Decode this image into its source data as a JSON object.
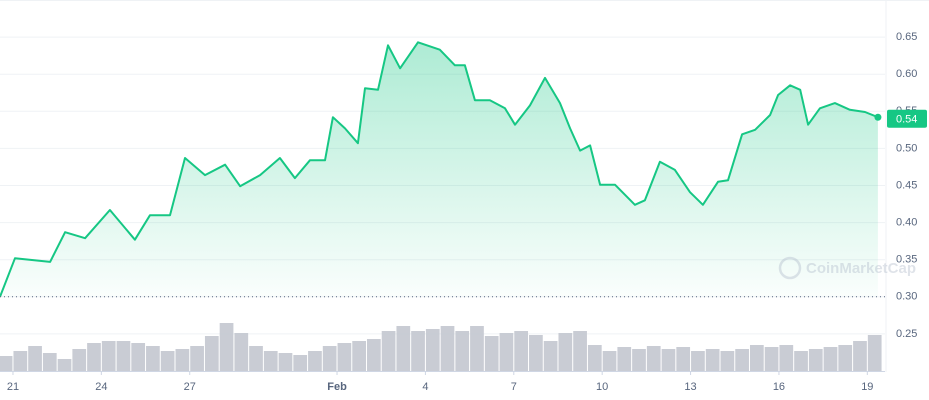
{
  "chart_data": {
    "type": "line",
    "x": [
      -0.44,
      0.07,
      1.26,
      1.77,
      2.45,
      3.29,
      4.14,
      4.65,
      5.33,
      5.84,
      6.52,
      7.2,
      7.71,
      8.39,
      9.06,
      9.57,
      10.08,
      10.59,
      10.86,
      11.27,
      11.71,
      11.95,
      12.39,
      12.73,
      13.14,
      13.75,
      14.49,
      15.0,
      15.34,
      15.68,
      16.19,
      16.7,
      17.04,
      17.55,
      18.06,
      18.57,
      18.91,
      19.25,
      19.59,
      19.93,
      20.44,
      21.11,
      21.45,
      21.96,
      22.47,
      22.98,
      23.42,
      23.93,
      24.27,
      24.75,
      25.19,
      25.7,
      25.97,
      26.38,
      26.72,
      26.99,
      27.39,
      27.9,
      28.41,
      28.92,
      29.36
    ],
    "series": [
      {
        "color": "#16c784",
        "values": [
          0.3,
          0.352,
          0.347,
          0.387,
          0.379,
          0.417,
          0.377,
          0.41,
          0.41,
          0.487,
          0.464,
          0.478,
          0.449,
          0.464,
          0.487,
          0.46,
          0.484,
          0.484,
          0.542,
          0.527,
          0.507,
          0.581,
          0.579,
          0.639,
          0.608,
          0.643,
          0.633,
          0.612,
          0.612,
          0.565,
          0.565,
          0.554,
          0.532,
          0.558,
          0.595,
          0.561,
          0.527,
          0.497,
          0.504,
          0.451,
          0.451,
          0.424,
          0.43,
          0.482,
          0.471,
          0.441,
          0.424,
          0.455,
          0.457,
          0.519,
          0.525,
          0.545,
          0.572,
          0.585,
          0.579,
          0.532,
          0.554,
          0.561,
          0.552,
          0.549,
          0.542
        ]
      }
    ],
    "volume": {
      "color": "#c3c7cf",
      "x": [
        -0.25,
        0.25,
        0.75,
        1.25,
        1.75,
        2.25,
        2.75,
        3.25,
        3.75,
        4.25,
        4.75,
        5.25,
        5.75,
        6.25,
        6.75,
        7.25,
        7.75,
        8.25,
        8.75,
        9.25,
        9.75,
        10.25,
        10.75,
        11.25,
        11.75,
        12.25,
        12.75,
        13.25,
        13.75,
        14.25,
        14.75,
        15.25,
        15.75,
        16.25,
        16.75,
        17.25,
        17.75,
        18.25,
        18.75,
        19.25,
        19.75,
        20.25,
        20.75,
        21.25,
        21.75,
        22.25,
        22.75,
        23.25,
        23.75,
        24.25,
        24.75,
        25.25,
        25.75,
        26.25,
        26.75,
        27.25,
        27.75,
        28.25,
        28.75,
        29.25
      ],
      "values": [
        15,
        20,
        25,
        18,
        12,
        22,
        28,
        30,
        30,
        28,
        25,
        20,
        22,
        25,
        35,
        48,
        38,
        25,
        20,
        18,
        16,
        20,
        25,
        28,
        30,
        32,
        40,
        45,
        40,
        42,
        45,
        40,
        45,
        35,
        38,
        40,
        36,
        30,
        38,
        40,
        26,
        20,
        24,
        22,
        25,
        22,
        24,
        20,
        22,
        20,
        22,
        26,
        24,
        26,
        20,
        22,
        24,
        26,
        30,
        36
      ]
    },
    "xlim": [
      -0.44,
      29.6
    ],
    "xticks": [
      {
        "value": 0,
        "label": "21"
      },
      {
        "value": 3,
        "label": "24"
      },
      {
        "value": 6,
        "label": "27"
      },
      {
        "value": 11,
        "label": "Feb"
      },
      {
        "value": 14,
        "label": "4"
      },
      {
        "value": 17,
        "label": "7"
      },
      {
        "value": 20,
        "label": "10"
      },
      {
        "value": 23,
        "label": "13"
      },
      {
        "value": 26,
        "label": "16"
      },
      {
        "value": 29,
        "label": "19"
      }
    ],
    "ylim": [
      0.2,
      0.7
    ],
    "yticks": [
      0.25,
      {
        "value": 0.3,
        "label": "0.30"
      },
      0.35,
      {
        "value": 0.4,
        "label": "0.40"
      },
      0.45,
      {
        "value": 0.5,
        "label": "0.50"
      },
      0.55,
      {
        "value": 0.6,
        "label": "0.60"
      },
      0.65
    ],
    "baseline": 0.3,
    "current_price": 0.54,
    "watermark": "CoinMarketCap",
    "grid": true
  }
}
